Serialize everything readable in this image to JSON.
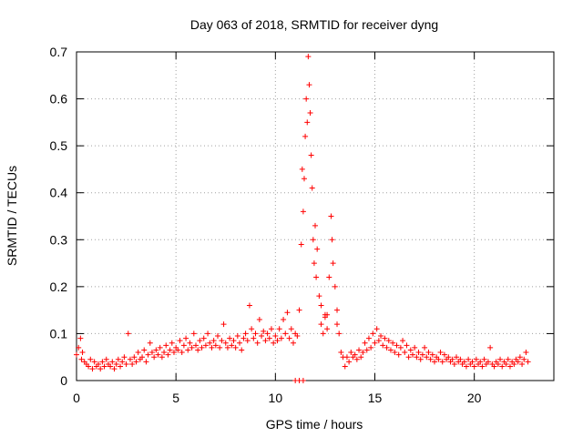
{
  "chart_data": {
    "type": "scatter",
    "title": "Day 063 of 2018, SRMTID for receiver dyng",
    "xlabel": "GPS time / hours",
    "ylabel": "SRMTID / TECUs",
    "xlim": [
      0,
      24
    ],
    "ylim": [
      0,
      0.7
    ],
    "xticks": [
      0,
      5,
      10,
      15,
      20
    ],
    "yticks": [
      0,
      0.1,
      0.2,
      0.3,
      0.4,
      0.5,
      0.6,
      0.7
    ],
    "xtick_labels": [
      "0",
      "5",
      "10",
      "15",
      "20"
    ],
    "ytick_labels": [
      "0",
      "0.1",
      "0.2",
      "0.3",
      "0.4",
      "0.5",
      "0.6",
      "0.7"
    ],
    "grid": true,
    "marker": "+",
    "color": "#ff0000",
    "series": [
      {
        "name": "SRMTID",
        "points": [
          [
            0.0,
            0.055
          ],
          [
            0.1,
            0.07
          ],
          [
            0.2,
            0.09
          ],
          [
            0.25,
            0.045
          ],
          [
            0.3,
            0.06
          ],
          [
            0.4,
            0.04
          ],
          [
            0.5,
            0.035
          ],
          [
            0.6,
            0.03
          ],
          [
            0.7,
            0.045
          ],
          [
            0.8,
            0.025
          ],
          [
            0.9,
            0.04
          ],
          [
            1.0,
            0.03
          ],
          [
            1.1,
            0.035
          ],
          [
            1.2,
            0.025
          ],
          [
            1.3,
            0.04
          ],
          [
            1.4,
            0.03
          ],
          [
            1.5,
            0.045
          ],
          [
            1.6,
            0.035
          ],
          [
            1.7,
            0.03
          ],
          [
            1.8,
            0.04
          ],
          [
            1.9,
            0.025
          ],
          [
            2.0,
            0.035
          ],
          [
            2.1,
            0.045
          ],
          [
            2.2,
            0.03
          ],
          [
            2.3,
            0.04
          ],
          [
            2.4,
            0.05
          ],
          [
            2.5,
            0.035
          ],
          [
            2.6,
            0.1
          ],
          [
            2.7,
            0.045
          ],
          [
            2.8,
            0.035
          ],
          [
            2.9,
            0.05
          ],
          [
            3.0,
            0.04
          ],
          [
            3.1,
            0.06
          ],
          [
            3.2,
            0.045
          ],
          [
            3.3,
            0.05
          ],
          [
            3.4,
            0.065
          ],
          [
            3.5,
            0.04
          ],
          [
            3.6,
            0.055
          ],
          [
            3.7,
            0.08
          ],
          [
            3.8,
            0.06
          ],
          [
            3.9,
            0.05
          ],
          [
            4.0,
            0.065
          ],
          [
            4.1,
            0.055
          ],
          [
            4.2,
            0.07
          ],
          [
            4.3,
            0.05
          ],
          [
            4.4,
            0.06
          ],
          [
            4.5,
            0.075
          ],
          [
            4.6,
            0.055
          ],
          [
            4.7,
            0.065
          ],
          [
            4.8,
            0.08
          ],
          [
            4.9,
            0.06
          ],
          [
            5.0,
            0.07
          ],
          [
            5.1,
            0.065
          ],
          [
            5.2,
            0.085
          ],
          [
            5.3,
            0.06
          ],
          [
            5.4,
            0.075
          ],
          [
            5.5,
            0.09
          ],
          [
            5.6,
            0.065
          ],
          [
            5.7,
            0.08
          ],
          [
            5.8,
            0.07
          ],
          [
            5.9,
            0.1
          ],
          [
            6.0,
            0.075
          ],
          [
            6.1,
            0.065
          ],
          [
            6.2,
            0.085
          ],
          [
            6.3,
            0.07
          ],
          [
            6.4,
            0.09
          ],
          [
            6.5,
            0.075
          ],
          [
            6.6,
            0.1
          ],
          [
            6.7,
            0.08
          ],
          [
            6.8,
            0.07
          ],
          [
            6.9,
            0.085
          ],
          [
            7.0,
            0.075
          ],
          [
            7.1,
            0.095
          ],
          [
            7.2,
            0.07
          ],
          [
            7.3,
            0.085
          ],
          [
            7.4,
            0.12
          ],
          [
            7.5,
            0.08
          ],
          [
            7.6,
            0.07
          ],
          [
            7.7,
            0.09
          ],
          [
            7.8,
            0.075
          ],
          [
            7.9,
            0.085
          ],
          [
            8.0,
            0.07
          ],
          [
            8.1,
            0.095
          ],
          [
            8.2,
            0.08
          ],
          [
            8.3,
            0.065
          ],
          [
            8.4,
            0.09
          ],
          [
            8.5,
            0.1
          ],
          [
            8.6,
            0.085
          ],
          [
            8.7,
            0.16
          ],
          [
            8.8,
            0.11
          ],
          [
            8.9,
            0.09
          ],
          [
            9.0,
            0.1
          ],
          [
            9.1,
            0.08
          ],
          [
            9.2,
            0.13
          ],
          [
            9.3,
            0.095
          ],
          [
            9.4,
            0.105
          ],
          [
            9.5,
            0.085
          ],
          [
            9.6,
            0.1
          ],
          [
            9.7,
            0.09
          ],
          [
            9.8,
            0.11
          ],
          [
            9.9,
            0.08
          ],
          [
            10.0,
            0.095
          ],
          [
            10.1,
            0.085
          ],
          [
            10.2,
            0.11
          ],
          [
            10.3,
            0.09
          ],
          [
            10.4,
            0.13
          ],
          [
            10.5,
            0.1
          ],
          [
            10.6,
            0.145
          ],
          [
            10.7,
            0.09
          ],
          [
            10.8,
            0.11
          ],
          [
            10.9,
            0.08
          ],
          [
            11.0,
            0.1
          ],
          [
            11.1,
            0.095
          ],
          [
            11.2,
            0.15
          ],
          [
            11.3,
            0.29
          ],
          [
            11.35,
            0.45
          ],
          [
            11.4,
            0.36
          ],
          [
            11.45,
            0.43
          ],
          [
            11.5,
            0.52
          ],
          [
            11.55,
            0.6
          ],
          [
            11.6,
            0.55
          ],
          [
            11.65,
            0.69
          ],
          [
            11.7,
            0.63
          ],
          [
            11.75,
            0.57
          ],
          [
            11.8,
            0.48
          ],
          [
            11.85,
            0.41
          ],
          [
            11.9,
            0.3
          ],
          [
            11.95,
            0.25
          ],
          [
            12.0,
            0.33
          ],
          [
            12.05,
            0.22
          ],
          [
            12.1,
            0.28
          ],
          [
            12.2,
            0.18
          ],
          [
            12.3,
            0.12
          ],
          [
            12.4,
            0.1
          ],
          [
            12.5,
            0.14
          ],
          [
            12.6,
            0.11
          ],
          [
            12.7,
            0.22
          ],
          [
            12.8,
            0.35
          ],
          [
            12.85,
            0.3
          ],
          [
            12.9,
            0.25
          ],
          [
            13.0,
            0.2
          ],
          [
            13.1,
            0.15
          ],
          [
            13.2,
            0.1
          ],
          [
            13.3,
            0.06
          ],
          [
            13.4,
            0.05
          ],
          [
            13.5,
            0.03
          ],
          [
            13.6,
            0.05
          ],
          [
            13.7,
            0.04
          ],
          [
            13.8,
            0.06
          ],
          [
            13.9,
            0.05
          ],
          [
            14.0,
            0.055
          ],
          [
            14.1,
            0.045
          ],
          [
            14.2,
            0.065
          ],
          [
            14.3,
            0.05
          ],
          [
            14.4,
            0.06
          ],
          [
            14.5,
            0.08
          ],
          [
            14.6,
            0.065
          ],
          [
            14.7,
            0.09
          ],
          [
            14.8,
            0.07
          ],
          [
            14.9,
            0.1
          ],
          [
            15.0,
            0.08
          ],
          [
            15.1,
            0.11
          ],
          [
            15.2,
            0.085
          ],
          [
            15.3,
            0.095
          ],
          [
            15.4,
            0.075
          ],
          [
            15.5,
            0.09
          ],
          [
            15.6,
            0.07
          ],
          [
            15.7,
            0.085
          ],
          [
            15.8,
            0.065
          ],
          [
            15.9,
            0.08
          ],
          [
            16.0,
            0.06
          ],
          [
            16.1,
            0.075
          ],
          [
            16.2,
            0.055
          ],
          [
            16.3,
            0.07
          ],
          [
            16.4,
            0.085
          ],
          [
            16.5,
            0.06
          ],
          [
            16.6,
            0.075
          ],
          [
            16.7,
            0.05
          ],
          [
            16.8,
            0.065
          ],
          [
            16.9,
            0.055
          ],
          [
            17.0,
            0.07
          ],
          [
            17.1,
            0.05
          ],
          [
            17.2,
            0.06
          ],
          [
            17.3,
            0.045
          ],
          [
            17.4,
            0.055
          ],
          [
            17.5,
            0.07
          ],
          [
            17.6,
            0.05
          ],
          [
            17.7,
            0.06
          ],
          [
            17.8,
            0.045
          ],
          [
            17.9,
            0.055
          ],
          [
            18.0,
            0.04
          ],
          [
            18.1,
            0.05
          ],
          [
            18.2,
            0.045
          ],
          [
            18.3,
            0.06
          ],
          [
            18.4,
            0.04
          ],
          [
            18.5,
            0.055
          ],
          [
            18.6,
            0.045
          ],
          [
            18.7,
            0.05
          ],
          [
            18.8,
            0.04
          ],
          [
            18.9,
            0.045
          ],
          [
            19.0,
            0.035
          ],
          [
            19.1,
            0.05
          ],
          [
            19.2,
            0.04
          ],
          [
            19.3,
            0.045
          ],
          [
            19.4,
            0.035
          ],
          [
            19.5,
            0.04
          ],
          [
            19.6,
            0.03
          ],
          [
            19.7,
            0.045
          ],
          [
            19.8,
            0.035
          ],
          [
            19.9,
            0.04
          ],
          [
            20.0,
            0.03
          ],
          [
            20.1,
            0.045
          ],
          [
            20.2,
            0.035
          ],
          [
            20.3,
            0.04
          ],
          [
            20.4,
            0.03
          ],
          [
            20.5,
            0.045
          ],
          [
            20.6,
            0.035
          ],
          [
            20.7,
            0.04
          ],
          [
            20.8,
            0.07
          ],
          [
            20.9,
            0.035
          ],
          [
            21.0,
            0.03
          ],
          [
            21.1,
            0.04
          ],
          [
            21.2,
            0.035
          ],
          [
            21.3,
            0.045
          ],
          [
            21.4,
            0.03
          ],
          [
            21.5,
            0.04
          ],
          [
            21.6,
            0.035
          ],
          [
            21.7,
            0.045
          ],
          [
            21.8,
            0.03
          ],
          [
            21.9,
            0.04
          ],
          [
            22.0,
            0.035
          ],
          [
            22.1,
            0.045
          ],
          [
            22.2,
            0.04
          ],
          [
            22.3,
            0.05
          ],
          [
            22.4,
            0.035
          ],
          [
            22.5,
            0.045
          ],
          [
            22.6,
            0.06
          ],
          [
            22.7,
            0.04
          ],
          [
            11.0,
            0.0
          ],
          [
            11.2,
            0.0
          ],
          [
            11.4,
            0.0
          ],
          [
            12.5,
            0.135
          ],
          [
            12.6,
            0.14
          ],
          [
            12.3,
            0.16
          ],
          [
            13.1,
            0.12
          ]
        ]
      }
    ]
  }
}
